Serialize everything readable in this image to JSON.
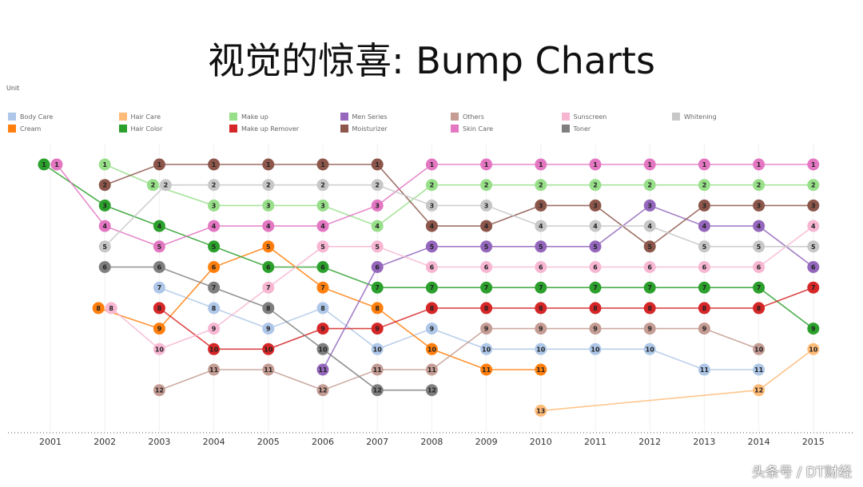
{
  "chart_data": {
    "type": "line",
    "subtype": "bump",
    "title": "视觉的惊喜: Bump Charts",
    "legend_title": "Unit",
    "legend_position": "top",
    "x": [
      "2001",
      "2002",
      "2003",
      "2004",
      "2005",
      "2006",
      "2007",
      "2008",
      "2009",
      "2010",
      "2011",
      "2012",
      "2013",
      "2014",
      "2015"
    ],
    "y_reversed": true,
    "ylim": [
      1,
      13
    ],
    "grid": "vertical",
    "series": [
      {
        "name": "Body Care",
        "color": "#aec7e8",
        "values": [
          null,
          null,
          7,
          8,
          9,
          8,
          10,
          9,
          10,
          10,
          10,
          10,
          11,
          11,
          null
        ]
      },
      {
        "name": "Cream",
        "color": "#ff7f0e",
        "values": [
          null,
          8,
          9,
          6,
          5,
          7,
          8,
          10,
          11,
          11,
          null,
          null,
          null,
          null,
          null
        ]
      },
      {
        "name": "Hair Care",
        "color": "#ffbb78",
        "values": [
          null,
          null,
          null,
          null,
          null,
          null,
          null,
          null,
          null,
          13,
          null,
          null,
          null,
          12,
          10
        ]
      },
      {
        "name": "Hair Color",
        "color": "#2ca02c",
        "values": [
          1,
          3,
          4,
          5,
          6,
          6,
          7,
          7,
          7,
          7,
          7,
          7,
          7,
          7,
          9
        ]
      },
      {
        "name": "Make up",
        "color": "#98df8a",
        "values": [
          null,
          1,
          2,
          3,
          3,
          3,
          4,
          2,
          2,
          2,
          2,
          2,
          2,
          2,
          2
        ]
      },
      {
        "name": "Make up Remover",
        "color": "#d62728",
        "values": [
          null,
          null,
          8,
          10,
          10,
          9,
          9,
          8,
          8,
          8,
          8,
          8,
          8,
          8,
          7
        ]
      },
      {
        "name": "Men Series",
        "color": "#9467bd",
        "values": [
          null,
          null,
          null,
          null,
          null,
          11,
          6,
          5,
          5,
          5,
          5,
          3,
          4,
          4,
          6
        ]
      },
      {
        "name": "Moisturizer",
        "color": "#8c564b",
        "values": [
          null,
          2,
          1,
          1,
          1,
          1,
          1,
          4,
          4,
          3,
          3,
          5,
          3,
          3,
          3
        ]
      },
      {
        "name": "Others",
        "color": "#c49c94",
        "values": [
          null,
          null,
          12,
          11,
          11,
          12,
          11,
          11,
          9,
          9,
          9,
          9,
          9,
          10,
          null
        ]
      },
      {
        "name": "Skin Care",
        "color": "#e377c2",
        "values": [
          1,
          4,
          5,
          4,
          4,
          4,
          3,
          1,
          1,
          1,
          1,
          1,
          1,
          1,
          1
        ]
      },
      {
        "name": "Sunscreen",
        "color": "#f7b6d2",
        "values": [
          null,
          8,
          10,
          9,
          7,
          5,
          5,
          6,
          6,
          6,
          6,
          6,
          6,
          6,
          4
        ]
      },
      {
        "name": "Toner",
        "color": "#7f7f7f",
        "values": [
          null,
          6,
          6,
          7,
          8,
          10,
          12,
          12,
          null,
          null,
          null,
          null,
          null,
          null,
          null
        ]
      },
      {
        "name": "Whitening",
        "color": "#c7c7c7",
        "values": [
          null,
          5,
          2,
          2,
          2,
          2,
          2,
          3,
          3,
          4,
          4,
          4,
          5,
          5,
          5
        ]
      }
    ]
  },
  "watermark": "头条号 / DT财经"
}
